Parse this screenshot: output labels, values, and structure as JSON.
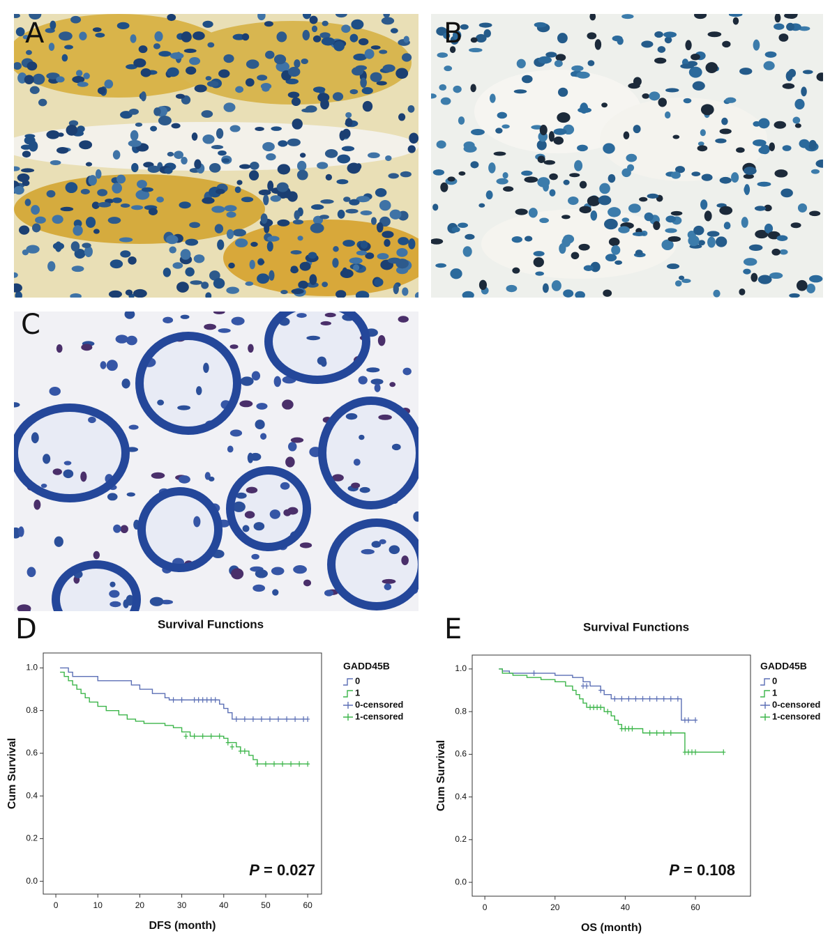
{
  "panels": [
    {
      "label": "A"
    },
    {
      "label": "B"
    },
    {
      "label": "C"
    }
  ],
  "chart_data": [
    {
      "type": "km",
      "panel": "D",
      "title": "Survival Functions",
      "x_label": "DFS (month)",
      "y_label": "Cum Survival",
      "legend_title": "GADD45B",
      "annotation": {
        "italic": "P",
        "text": "= 0.027"
      },
      "xlim": [
        -3,
        63.3
      ],
      "ylim": [
        -0.06,
        1.07
      ],
      "xticks": [
        0,
        10,
        20,
        30,
        40,
        50,
        60
      ],
      "yticks": [
        {
          "value": 0,
          "label": "0.0"
        },
        0.2,
        0.4,
        0.6,
        0.8,
        {
          "value": 1,
          "label": "1.0"
        }
      ],
      "series": [
        {
          "name": "0",
          "kind": "step",
          "color": "#5b6fb5",
          "x": [
            1,
            3,
            4,
            10,
            18,
            20,
            23,
            26,
            27,
            39,
            40,
            41,
            42,
            60
          ],
          "values": [
            1.0,
            0.98,
            0.96,
            0.94,
            0.92,
            0.9,
            0.88,
            0.86,
            0.85,
            0.83,
            0.81,
            0.79,
            0.76,
            0.76
          ]
        },
        {
          "name": "1",
          "kind": "step",
          "color": "#3cb54a",
          "x": [
            1,
            2,
            3,
            4,
            5,
            6,
            7,
            8,
            10,
            12,
            15,
            17,
            19,
            21,
            26,
            28,
            30,
            32,
            40,
            41,
            43,
            44,
            46,
            47,
            48,
            60
          ],
          "values": [
            0.98,
            0.96,
            0.94,
            0.92,
            0.9,
            0.88,
            0.86,
            0.84,
            0.82,
            0.8,
            0.78,
            0.76,
            0.75,
            0.74,
            0.73,
            0.72,
            0.7,
            0.68,
            0.67,
            0.65,
            0.63,
            0.61,
            0.59,
            0.57,
            0.55,
            0.55
          ]
        },
        {
          "name": "0-censored",
          "kind": "censor",
          "color": "#5b6fb5",
          "x": [
            28,
            30,
            33,
            34,
            35,
            36,
            37,
            38,
            43,
            45,
            47,
            49,
            51,
            53,
            55,
            57,
            59,
            60
          ],
          "values": [
            0.85,
            0.85,
            0.85,
            0.85,
            0.85,
            0.85,
            0.85,
            0.85,
            0.76,
            0.76,
            0.76,
            0.76,
            0.76,
            0.76,
            0.76,
            0.76,
            0.76,
            0.76
          ]
        },
        {
          "name": "1-censored",
          "kind": "censor",
          "color": "#3cb54a",
          "x": [
            31,
            33,
            35,
            37,
            39,
            41,
            42,
            44,
            45,
            48,
            50,
            52,
            54,
            56,
            58,
            60
          ],
          "values": [
            0.68,
            0.68,
            0.68,
            0.68,
            0.68,
            0.65,
            0.63,
            0.61,
            0.61,
            0.55,
            0.55,
            0.55,
            0.55,
            0.55,
            0.55,
            0.55
          ]
        }
      ]
    },
    {
      "type": "km",
      "panel": "E",
      "title": "Survival Functions",
      "x_label": "OS (month)",
      "y_label": "Cum Survival",
      "legend_title": "GADD45B",
      "annotation": {
        "italic": "P",
        "text": "= 0.108"
      },
      "xlim": [
        -3.6,
        75.7
      ],
      "ylim": [
        -0.065,
        1.065
      ],
      "xticks": [
        0,
        20,
        40,
        60
      ],
      "yticks": [
        {
          "value": 0,
          "label": "0.0"
        },
        0.2,
        0.4,
        0.6,
        0.8,
        {
          "value": 1,
          "label": "1.0"
        }
      ],
      "series": [
        {
          "name": "0",
          "kind": "step",
          "color": "#5b6fb5",
          "x": [
            4,
            5,
            7,
            20,
            25,
            28,
            30,
            33,
            34,
            36,
            56,
            60
          ],
          "values": [
            1.0,
            0.99,
            0.98,
            0.97,
            0.96,
            0.94,
            0.92,
            0.9,
            0.88,
            0.86,
            0.76,
            0.76
          ]
        },
        {
          "name": "1",
          "kind": "step",
          "color": "#3cb54a",
          "x": [
            4,
            5,
            8,
            12,
            16,
            20,
            23,
            25,
            26,
            27,
            28,
            29,
            34,
            36,
            37,
            38,
            39,
            45,
            57,
            68
          ],
          "values": [
            1.0,
            0.98,
            0.97,
            0.96,
            0.95,
            0.94,
            0.92,
            0.9,
            0.88,
            0.86,
            0.84,
            0.82,
            0.8,
            0.78,
            0.76,
            0.74,
            0.72,
            0.7,
            0.61,
            0.61
          ]
        },
        {
          "name": "0-censored",
          "kind": "censor",
          "color": "#5b6fb5",
          "x": [
            14,
            28,
            29,
            33,
            37,
            39,
            41,
            43,
            45,
            47,
            49,
            51,
            53,
            55,
            57,
            58,
            60
          ],
          "values": [
            0.98,
            0.92,
            0.92,
            0.9,
            0.86,
            0.86,
            0.86,
            0.86,
            0.86,
            0.86,
            0.86,
            0.86,
            0.86,
            0.86,
            0.76,
            0.76,
            0.76
          ]
        },
        {
          "name": "1-censored",
          "kind": "censor",
          "color": "#3cb54a",
          "x": [
            30,
            31,
            32,
            33,
            35,
            39,
            40,
            41,
            42,
            47,
            49,
            51,
            53,
            57,
            58,
            59,
            60,
            68
          ],
          "values": [
            0.82,
            0.82,
            0.82,
            0.82,
            0.8,
            0.72,
            0.72,
            0.72,
            0.72,
            0.7,
            0.7,
            0.7,
            0.7,
            0.61,
            0.61,
            0.61,
            0.61,
            0.61
          ]
        }
      ]
    }
  ]
}
